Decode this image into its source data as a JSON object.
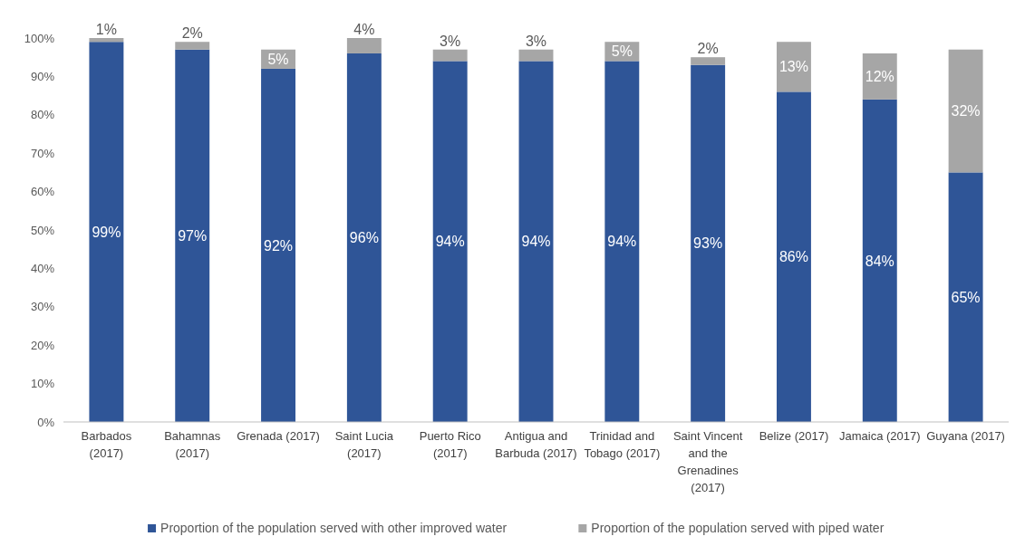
{
  "chart_data": {
    "type": "bar",
    "stacked": true,
    "categories": [
      "Barbados (2017)",
      "Bahamnas (2017)",
      "Grenada (2017)",
      "Saint Lucia (2017)",
      "Puerto Rico (2017)",
      "Antigua and Barbuda (2017)",
      "Trinidad and Tobago (2017)",
      "Saint Vincent and the Grenadines (2017)",
      "Belize (2017)",
      "Jamaica (2017)",
      "Guyana (2017)"
    ],
    "series": [
      {
        "name": "Proportion of the population served with other improved water",
        "color": "#2f5597",
        "values": [
          99,
          97,
          92,
          96,
          94,
          94,
          94,
          93,
          86,
          84,
          65
        ],
        "value_labels": [
          "99%",
          "97%",
          "92%",
          "96%",
          "94%",
          "94%",
          "94%",
          "93%",
          "86%",
          "84%",
          "65%"
        ]
      },
      {
        "name": "Proportion of the population served with piped water",
        "color": "#a6a6a6",
        "values": [
          1,
          2,
          5,
          4,
          3,
          3,
          5,
          2,
          13,
          12,
          32
        ],
        "value_labels": [
          "1%",
          "2%",
          "5%",
          "4%",
          "3%",
          "3%",
          "5%",
          "2%",
          "13%",
          "12%",
          "32%"
        ]
      }
    ],
    "ylim": [
      0,
      100
    ],
    "yticks": [
      {
        "value": 0,
        "label": "0%"
      },
      {
        "value": 10,
        "label": "10%"
      },
      {
        "value": 20,
        "label": "20%"
      },
      {
        "value": 30,
        "label": "30%"
      },
      {
        "value": 40,
        "label": "40%"
      },
      {
        "value": 50,
        "label": "50%"
      },
      {
        "value": 60,
        "label": "60%"
      },
      {
        "value": 70,
        "label": "70%"
      },
      {
        "value": 80,
        "label": "80%"
      },
      {
        "value": 90,
        "label": "90%"
      },
      {
        "value": 100,
        "label": "100%"
      }
    ],
    "legend": "bottom"
  }
}
